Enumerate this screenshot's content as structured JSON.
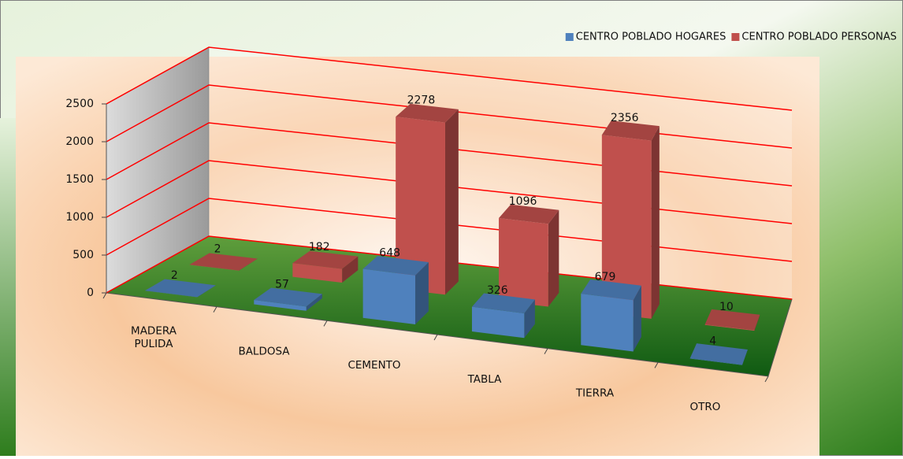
{
  "chart_data": {
    "type": "bar3d",
    "categories": [
      "MADERA PULIDA",
      "BALDOSA",
      "CEMENTO",
      "TABLA",
      "TIERRA",
      "OTRO"
    ],
    "series": [
      {
        "name": "CENTRO POBLADO HOGARES",
        "color": "#4f81bd",
        "values": [
          2,
          57,
          648,
          326,
          679,
          4
        ]
      },
      {
        "name": "CENTRO POBLADO PERSONAS",
        "color": "#c0504d",
        "values": [
          2,
          182,
          2278,
          1096,
          2356,
          10
        ]
      }
    ],
    "ylim": [
      0,
      2500
    ],
    "yticks": [
      0,
      500,
      1000,
      1500,
      2000,
      2500
    ],
    "grid": true,
    "grid_color": "#ff0000",
    "legend": "top-right"
  }
}
